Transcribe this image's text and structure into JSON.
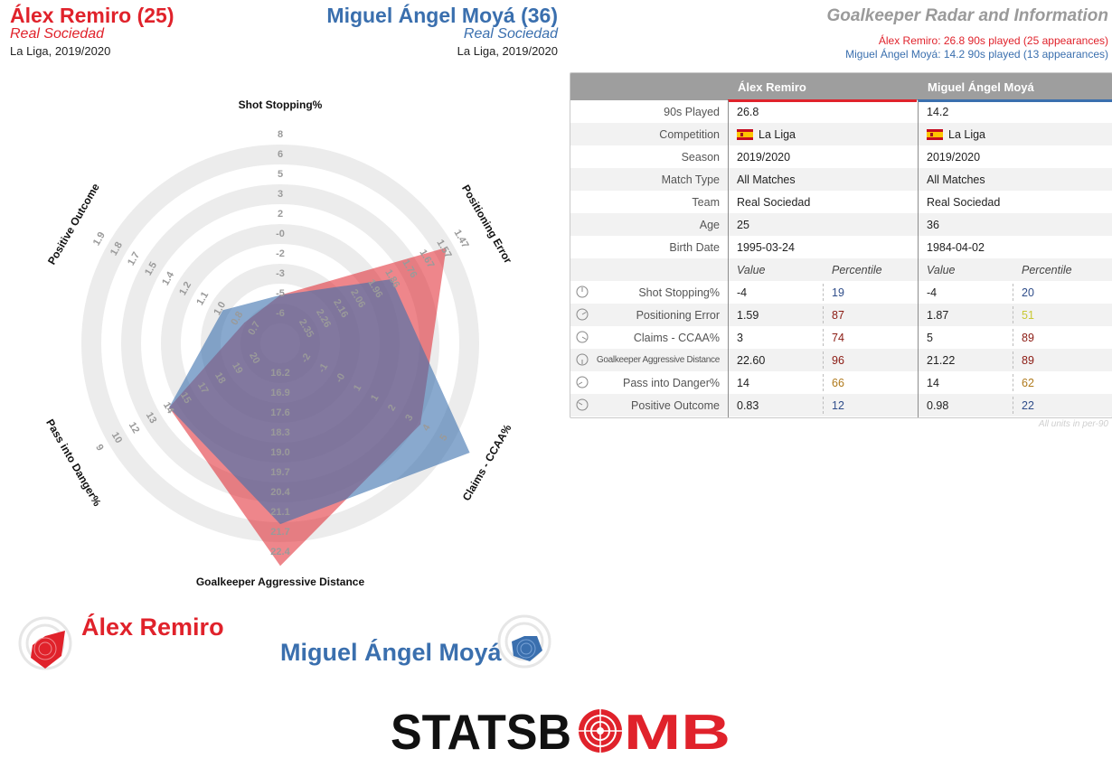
{
  "header": {
    "player1": {
      "name": "Álex Remiro (25)",
      "team": "Real Sociedad",
      "competition": "La Liga, 2019/2020"
    },
    "player2": {
      "name": "Miguel Ángel Moyá (36)",
      "team": "Real Sociedad",
      "competition": "La Liga, 2019/2020"
    },
    "title": "Goalkeeper Radar and Information",
    "subtitle1": "Álex Remiro: 26.8 90s played (25 appearances)",
    "subtitle2": "Miguel Ángel Moyá: 14.2 90s played (13 appearances)"
  },
  "colors": {
    "player1": "#e0222b",
    "player2": "#3a6fae",
    "pct_low": "#2f4d8a",
    "pct_mid": "#b07a1c",
    "pct_midlow": "#c8c832",
    "pct_high": "#8b1a12"
  },
  "chart_data": {
    "type": "radar",
    "metrics": [
      {
        "name": "Shot Stopping%",
        "ticks": [
          "-6",
          "-5",
          "-3",
          "-2",
          "-0",
          "2",
          "3",
          "5",
          "6",
          "8"
        ],
        "p1": -4,
        "p2": -4
      },
      {
        "name": "Positioning Error",
        "ticks": [
          "2.35",
          "2.26",
          "2.16",
          "2.06",
          "1.96",
          "1.86",
          "1.76",
          "1.67",
          "1.57",
          "1.47"
        ],
        "p1": 1.59,
        "p2": 1.87
      },
      {
        "name": "Claims - CCAA%",
        "ticks": [
          "-2",
          "-1",
          "-0",
          "1",
          "1",
          "2",
          "3",
          "4",
          "5"
        ],
        "p1": 3,
        "p2": 5
      },
      {
        "name": "Goalkeeper Aggressive Distance",
        "ticks": [
          "16.2",
          "16.9",
          "17.6",
          "18.3",
          "19.0",
          "19.7",
          "20.4",
          "21.1",
          "21.7",
          "22.4"
        ],
        "p1": 22.6,
        "p2": 21.22
      },
      {
        "name": "Pass into Danger%",
        "ticks": [
          "20",
          "19",
          "18",
          "17",
          "15",
          "14",
          "13",
          "12",
          "10",
          "9"
        ],
        "p1": 14,
        "p2": 14
      },
      {
        "name": "Positive Outcome",
        "ticks": [
          "0.7",
          "0.8",
          "1.0",
          "1.1",
          "1.2",
          "1.4",
          "1.5",
          "1.7",
          "1.8",
          "1.9"
        ],
        "p1": 0.83,
        "p2": 0.98
      }
    ]
  },
  "table": {
    "col_player1": "Álex Remiro",
    "col_player2": "Miguel Ángel Moyá",
    "info_rows": [
      {
        "label": "90s Played",
        "v1": "26.8",
        "v2": "14.2"
      },
      {
        "label": "Competition",
        "v1": "La Liga",
        "v2": "La Liga",
        "flag": true
      },
      {
        "label": "Season",
        "v1": "2019/2020",
        "v2": "2019/2020"
      },
      {
        "label": "Match Type",
        "v1": "All Matches",
        "v2": "All Matches"
      },
      {
        "label": "Team",
        "v1": "Real Sociedad",
        "v2": "Real Sociedad"
      },
      {
        "label": "Age",
        "v1": "25",
        "v2": "36"
      },
      {
        "label": "Birth Date",
        "v1": "1995-03-24",
        "v2": "1984-04-02"
      }
    ],
    "value_header": "Value",
    "percentile_header": "Percentile",
    "stat_rows": [
      {
        "label": "Shot Stopping%",
        "v1": "-4",
        "p1": "19",
        "p1c": "low",
        "v2": "-4",
        "p2": "20",
        "p2c": "low",
        "icon": "shot-stopping-icon"
      },
      {
        "label": "Positioning Error",
        "v1": "1.59",
        "p1": "87",
        "p1c": "high",
        "v2": "1.87",
        "p2": "51",
        "p2c": "midlow",
        "icon": "positioning-error-icon"
      },
      {
        "label": "Claims - CCAA%",
        "v1": "3",
        "p1": "74",
        "p1c": "high",
        "v2": "5",
        "p2": "89",
        "p2c": "high",
        "icon": "claims-icon"
      },
      {
        "label": "Goalkeeper Aggressive Distance",
        "v1": "22.60",
        "p1": "96",
        "p1c": "high",
        "v2": "21.22",
        "p2": "89",
        "p2c": "high",
        "icon": "aggressive-distance-icon",
        "small": true
      },
      {
        "label": "Pass into Danger%",
        "v1": "14",
        "p1": "66",
        "p1c": "mid",
        "v2": "14",
        "p2": "62",
        "p2c": "mid",
        "icon": "pass-danger-icon"
      },
      {
        "label": "Positive Outcome",
        "v1": "0.83",
        "p1": "12",
        "p1c": "low",
        "v2": "0.98",
        "p2": "22",
        "p2c": "low",
        "icon": "positive-outcome-icon"
      }
    ],
    "units_note": "All units in per-90"
  },
  "legend": {
    "player1": "Álex Remiro",
    "player2": "Miguel Ángel Moyá"
  },
  "logo": {
    "text_left": "STATSB",
    "text_o": "O",
    "text_right": "MB"
  }
}
